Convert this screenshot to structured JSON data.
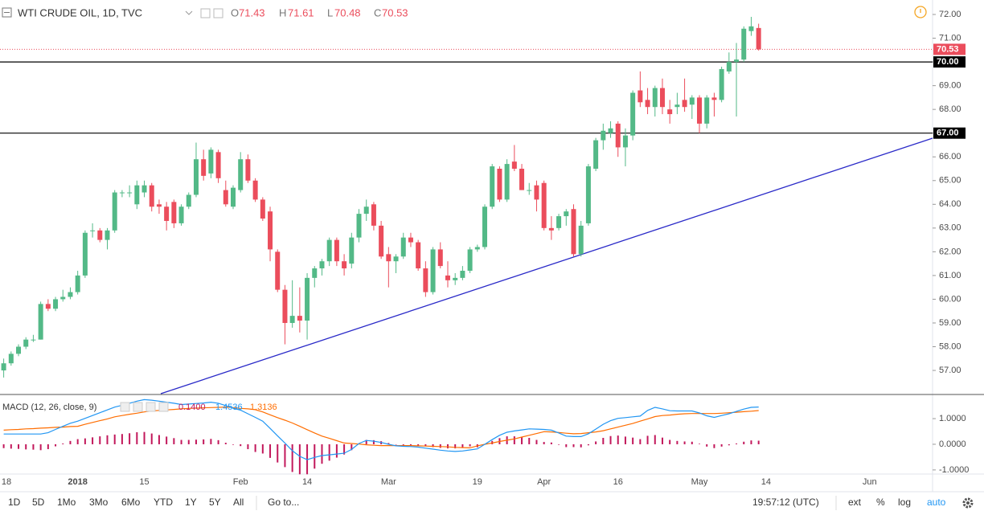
{
  "chart_data": {
    "type": "candlestick",
    "title": "WTI CRUDE OIL, 1D, TVC",
    "readout": [
      {
        "key": "O",
        "value": 71.43
      },
      {
        "key": "H",
        "value": 71.61
      },
      {
        "key": "L",
        "value": 70.48
      },
      {
        "key": "C",
        "value": 70.53
      }
    ],
    "up_color": "#53b987",
    "down_color": "#eb4d5c",
    "categories": [
      "18",
      null,
      null,
      null,
      null,
      null,
      null,
      null,
      null,
      null,
      "2018",
      null,
      null,
      null,
      null,
      null,
      null,
      null,
      null,
      "15",
      null,
      null,
      null,
      null,
      null,
      null,
      null,
      null,
      null,
      null,
      null,
      null,
      "Feb",
      null,
      null,
      null,
      null,
      null,
      null,
      null,
      null,
      "14",
      null,
      null,
      null,
      null,
      null,
      null,
      null,
      null,
      null,
      null,
      "Mar",
      null,
      null,
      null,
      null,
      null,
      null,
      null,
      null,
      null,
      null,
      null,
      "19",
      null,
      null,
      null,
      null,
      null,
      null,
      null,
      null,
      "Apr",
      null,
      null,
      null,
      null,
      null,
      null,
      null,
      null,
      null,
      "16",
      null,
      null,
      null,
      null,
      null,
      null,
      null,
      null,
      null,
      null,
      "May",
      null,
      null,
      null,
      null,
      null,
      null,
      null,
      null,
      "14",
      null,
      null,
      null,
      null,
      null,
      null,
      null,
      null,
      null,
      null,
      null,
      null,
      null,
      "Jun",
      null,
      null,
      null,
      null,
      null,
      null,
      null,
      null
    ],
    "open": [
      57.0,
      57.3,
      57.7,
      58.0,
      58.3,
      58.3,
      59.8,
      59.6,
      60.0,
      60.1,
      60.3,
      61.0,
      62.9,
      62.9,
      62.5,
      62.9,
      64.5,
      64.5,
      64.0,
      64.5,
      64.8,
      64.0,
      63.9,
      64.1,
      63.2,
      63.9,
      64.4,
      65.9,
      65.3,
      66.2,
      64.6,
      63.9,
      64.6,
      65.9,
      65.0,
      64.2,
      63.7,
      62.0,
      60.4,
      59.0,
      59.3,
      59.1,
      60.9,
      61.3,
      61.6,
      62.5,
      61.6,
      61.5,
      62.6,
      63.6,
      64.0,
      63.1,
      61.9,
      61.6,
      61.8,
      62.6,
      62.4,
      61.3,
      60.3,
      62.1,
      61.0,
      60.8,
      60.9,
      61.2,
      62.1,
      62.2,
      63.9,
      65.5,
      64.2,
      65.8,
      65.5,
      64.6,
      64.8,
      64.9,
      63.0,
      63.0,
      63.5,
      63.8,
      61.9,
      63.2,
      65.5,
      66.7,
      67.0,
      67.4,
      66.4,
      66.9,
      68.8,
      68.4,
      68.1,
      68.9,
      68.0,
      68.1,
      68.4,
      68.2,
      68.5,
      67.4,
      68.5,
      68.4,
      69.6,
      70.0,
      70.1,
      71.3,
      71.43,
      null,
      null,
      null,
      null,
      null,
      null,
      null,
      null,
      null,
      null,
      null,
      null,
      null,
      null,
      null,
      null,
      null,
      null,
      null,
      null,
      null,
      null,
      null
    ],
    "high": [
      57.5,
      57.8,
      58.1,
      58.4,
      58.5,
      59.9,
      60.0,
      60.1,
      60.4,
      60.5,
      61.2,
      62.9,
      63.2,
      63.0,
      63.0,
      64.6,
      64.6,
      64.8,
      65.0,
      65.0,
      64.9,
      64.2,
      64.1,
      64.2,
      64.0,
      64.5,
      66.6,
      66.3,
      66.4,
      66.3,
      65.0,
      64.8,
      66.2,
      66.1,
      65.1,
      64.3,
      63.9,
      62.1,
      60.6,
      60.8,
      60.5,
      61.1,
      61.4,
      61.7,
      62.6,
      62.6,
      61.9,
      62.8,
      63.8,
      64.2,
      64.1,
      63.3,
      62.2,
      61.9,
      62.8,
      62.8,
      62.5,
      61.6,
      62.2,
      62.4,
      61.6,
      61.1,
      61.4,
      62.2,
      62.3,
      64.0,
      65.7,
      65.6,
      65.9,
      66.5,
      65.7,
      64.9,
      65.0,
      65.0,
      63.5,
      63.6,
      63.8,
      64.0,
      63.3,
      65.7,
      66.8,
      67.4,
      67.5,
      67.5,
      67.2,
      68.8,
      69.6,
      68.9,
      69.0,
      69.3,
      68.4,
      68.7,
      69.3,
      68.6,
      68.6,
      68.6,
      68.7,
      69.8,
      70.4,
      70.8,
      71.5,
      71.9,
      71.61,
      null,
      null,
      null,
      null,
      null,
      null,
      null,
      null,
      null,
      null,
      null,
      null,
      null,
      null,
      null,
      null,
      null,
      null,
      null,
      null,
      null,
      null,
      null
    ],
    "low": [
      56.7,
      57.2,
      57.6,
      57.9,
      58.2,
      58.3,
      59.5,
      59.5,
      59.9,
      60.0,
      60.2,
      60.9,
      62.6,
      62.4,
      62.1,
      62.8,
      64.3,
      64.3,
      63.8,
      64.3,
      63.7,
      63.6,
      62.9,
      63.0,
      63.1,
      63.8,
      64.3,
      65.0,
      65.1,
      64.9,
      63.9,
      63.8,
      64.5,
      64.9,
      64.1,
      63.3,
      61.6,
      60.3,
      58.1,
      58.8,
      58.6,
      58.3,
      60.5,
      61.0,
      61.4,
      61.4,
      61.0,
      61.3,
      62.4,
      63.3,
      62.9,
      61.7,
      60.5,
      61.1,
      61.7,
      62.2,
      61.2,
      60.1,
      60.2,
      61.3,
      60.5,
      60.6,
      60.8,
      61.1,
      62.0,
      62.1,
      63.8,
      64.1,
      64.1,
      65.4,
      64.6,
      64.4,
      63.7,
      62.9,
      62.5,
      62.9,
      63.1,
      61.8,
      61.8,
      63.1,
      65.4,
      66.3,
      66.8,
      66.0,
      65.6,
      66.7,
      68.1,
      67.8,
      67.7,
      67.8,
      67.4,
      67.8,
      67.9,
      67.6,
      67.0,
      67.2,
      67.7,
      68.3,
      69.5,
      67.7,
      70.0,
      71.1,
      70.48,
      null,
      null,
      null,
      null,
      null,
      null,
      null,
      null,
      null,
      null,
      null,
      null,
      null,
      null,
      null,
      null,
      null,
      null,
      null,
      null,
      null,
      null,
      null
    ],
    "close": [
      57.3,
      57.7,
      58.0,
      58.3,
      58.3,
      59.8,
      59.6,
      60.0,
      60.1,
      60.3,
      61.0,
      62.8,
      62.9,
      62.5,
      62.9,
      64.5,
      64.5,
      64.5,
      64.8,
      64.8,
      63.9,
      63.9,
      63.3,
      63.2,
      63.9,
      64.4,
      65.9,
      65.2,
      66.3,
      65.1,
      64.0,
      64.7,
      65.9,
      65.0,
      64.2,
      63.4,
      62.1,
      60.4,
      59.0,
      59.3,
      59.1,
      60.9,
      61.3,
      61.6,
      62.5,
      61.6,
      61.3,
      62.6,
      63.6,
      63.9,
      63.1,
      61.8,
      61.6,
      61.8,
      62.6,
      62.4,
      61.3,
      60.3,
      62.1,
      61.4,
      60.8,
      60.9,
      61.2,
      62.1,
      62.2,
      63.9,
      65.6,
      64.2,
      65.7,
      65.5,
      64.6,
      64.6,
      64.2,
      63.0,
      62.9,
      63.5,
      63.7,
      61.9,
      63.1,
      65.6,
      66.7,
      67.1,
      67.2,
      66.4,
      66.9,
      68.7,
      68.3,
      68.1,
      68.9,
      68.1,
      67.8,
      68.2,
      68.1,
      68.5,
      67.4,
      68.5,
      68.4,
      69.7,
      70.0,
      70.1,
      71.4,
      71.5,
      70.53,
      null,
      null,
      null,
      null,
      null,
      null,
      null,
      null,
      null,
      null,
      null,
      null,
      null,
      null,
      null,
      null,
      null,
      null,
      null,
      null,
      null,
      null,
      null
    ],
    "ylim": [
      56.02,
      72.61
    ],
    "yticks": [
      {
        "value": 57,
        "label": "57.00"
      },
      {
        "value": 58,
        "label": "58.00"
      },
      {
        "value": 59,
        "label": "59.00"
      },
      {
        "value": 60,
        "label": "60.00"
      },
      {
        "value": 61,
        "label": "61.00"
      },
      {
        "value": 62,
        "label": "62.00"
      },
      {
        "value": 63,
        "label": "63.00"
      },
      {
        "value": 64,
        "label": "64.00"
      },
      {
        "value": 65,
        "label": "65.00"
      },
      {
        "value": 66,
        "label": "66.00"
      },
      {
        "value": 67,
        "label": "67.00"
      },
      {
        "value": 68,
        "label": "68.00"
      },
      {
        "value": 69,
        "label": "69.00"
      },
      {
        "value": 70,
        "label": "70.00"
      },
      {
        "value": 71,
        "label": "71.00"
      },
      {
        "value": 72,
        "label": "72.00"
      }
    ],
    "levels": [
      {
        "value": 70,
        "label": "70.00"
      },
      {
        "value": 67,
        "label": "67.00"
      }
    ],
    "level_color": "#000000",
    "last_price": {
      "value": 70.53,
      "label": "70.53"
    },
    "trend_color": "#2a2ac8",
    "macd": {
      "title": "MACD (12, 26, close, 9)",
      "ylim": [
        -1.16,
        1.91
      ],
      "yticks": [
        {
          "value": 1,
          "label": "1.0000"
        },
        {
          "value": 0,
          "label": "0.0000"
        },
        {
          "value": -1,
          "label": "-1.0000"
        }
      ],
      "readout": [
        {
          "value": 0.14,
          "label": "0.1400"
        },
        {
          "value": 1.4536,
          "label": "1.4536"
        },
        {
          "value": 1.3136,
          "label": "1.3136"
        }
      ],
      "histogram": {
        "color": "#c2185b",
        "values": [
          -0.15,
          -0.17,
          -0.18,
          -0.2,
          -0.21,
          -0.23,
          -0.19,
          -0.08,
          0.03,
          0.13,
          0.2,
          0.23,
          0.27,
          0.31,
          0.35,
          0.38,
          0.4,
          0.43,
          0.47,
          0.48,
          0.42,
          0.36,
          0.3,
          0.24,
          0.17,
          0.17,
          0.18,
          0.19,
          0.21,
          0.16,
          0.06,
          -0.02,
          -0.07,
          -0.19,
          -0.3,
          -0.36,
          -0.53,
          -0.71,
          -0.89,
          -1.08,
          -1.17,
          -1.17,
          -0.95,
          -0.76,
          -0.64,
          -0.52,
          -0.4,
          -0.23,
          0.02,
          0.17,
          0.16,
          0.12,
          0.05,
          -0.01,
          -0.03,
          -0.04,
          -0.05,
          -0.08,
          -0.11,
          -0.14,
          -0.16,
          -0.16,
          -0.13,
          -0.08,
          -0.12,
          0,
          0.13,
          0.24,
          0.31,
          0.31,
          0.28,
          0.25,
          0.17,
          0.09,
          0.07,
          -0.02,
          -0.11,
          -0.11,
          -0.12,
          -0.04,
          0.11,
          0.25,
          0.32,
          0.34,
          0.3,
          0.26,
          0.2,
          0.33,
          0.36,
          0.26,
          0.17,
          0.13,
          0.11,
          0.1,
          0.02,
          -0.09,
          -0.15,
          -0.09,
          -0.04,
          0.03,
          0.1,
          0.15,
          0.14,
          null,
          null,
          null,
          null,
          null,
          null,
          null,
          null,
          null,
          null,
          null,
          null,
          null,
          null,
          null,
          null,
          null,
          null,
          null,
          null,
          null,
          null,
          null
        ]
      },
      "macd_line": {
        "color": "#2196f3",
        "values": [
          0.4,
          0.4,
          0.4,
          0.4,
          0.4,
          0.4,
          0.45,
          0.58,
          0.7,
          0.82,
          0.9,
          1.01,
          1.12,
          1.23,
          1.34,
          1.45,
          1.52,
          1.6,
          1.68,
          1.74,
          1.72,
          1.68,
          1.64,
          1.6,
          1.55,
          1.57,
          1.59,
          1.61,
          1.64,
          1.6,
          1.51,
          1.41,
          1.33,
          1.19,
          1.05,
          0.9,
          0.62,
          0.33,
          0.05,
          -0.25,
          -0.47,
          -0.6,
          -0.51,
          -0.44,
          -0.41,
          -0.38,
          -0.35,
          -0.2,
          0.03,
          0.15,
          0.12,
          0.07,
          0,
          -0.06,
          -0.08,
          -0.09,
          -0.11,
          -0.15,
          -0.19,
          -0.23,
          -0.26,
          -0.28,
          -0.26,
          -0.22,
          -0.18,
          0,
          0.18,
          0.35,
          0.47,
          0.52,
          0.56,
          0.6,
          0.59,
          0.58,
          0.55,
          0.44,
          0.32,
          0.3,
          0.3,
          0.41,
          0.59,
          0.78,
          0.92,
          1.01,
          1.04,
          1.07,
          1.1,
          1.32,
          1.44,
          1.38,
          1.31,
          1.3,
          1.3,
          1.3,
          1.22,
          1.11,
          1.05,
          1.12,
          1.19,
          1.28,
          1.37,
          1.44,
          1.4536,
          null,
          null,
          null,
          null,
          null,
          null,
          null,
          null,
          null,
          null,
          null,
          null,
          null,
          null,
          null,
          null,
          null,
          null,
          null,
          null,
          null,
          null,
          null
        ]
      },
      "signal_line": {
        "color": "#ff6d00",
        "values": [
          0.55,
          0.57,
          0.58,
          0.6,
          0.61,
          0.63,
          0.64,
          0.66,
          0.67,
          0.69,
          0.7,
          0.78,
          0.85,
          0.92,
          0.99,
          1.07,
          1.12,
          1.17,
          1.21,
          1.26,
          1.3,
          1.32,
          1.34,
          1.36,
          1.38,
          1.4,
          1.41,
          1.42,
          1.43,
          1.44,
          1.45,
          1.43,
          1.4,
          1.38,
          1.35,
          1.26,
          1.15,
          1.04,
          0.94,
          0.83,
          0.7,
          0.57,
          0.44,
          0.32,
          0.23,
          0.14,
          0.05,
          0.03,
          0.01,
          -0.02,
          -0.04,
          -0.05,
          -0.05,
          -0.05,
          -0.05,
          -0.05,
          -0.06,
          -0.07,
          -0.08,
          -0.09,
          -0.1,
          -0.12,
          -0.13,
          -0.14,
          -0.06,
          0,
          0.05,
          0.11,
          0.16,
          0.21,
          0.28,
          0.35,
          0.42,
          0.49,
          0.48,
          0.46,
          0.43,
          0.41,
          0.42,
          0.45,
          0.48,
          0.53,
          0.6,
          0.67,
          0.74,
          0.81,
          0.9,
          0.99,
          1.08,
          1.12,
          1.14,
          1.17,
          1.19,
          1.2,
          1.2,
          1.2,
          1.2,
          1.21,
          1.23,
          1.25,
          1.27,
          1.29,
          1.3136,
          null,
          null,
          null,
          null,
          null,
          null,
          null,
          null,
          null,
          null,
          null,
          null,
          null,
          null,
          null,
          null,
          null,
          null,
          null,
          null,
          null,
          null,
          null
        ]
      }
    },
    "toolbar": {
      "ranges": [
        "1D",
        "5D",
        "1Mo",
        "3Mo",
        "6Mo",
        "YTD",
        "1Y",
        "5Y",
        "All"
      ],
      "goto": "Go to...",
      "time": "19:57:12 (UTC)",
      "options": [
        "ext",
        "%",
        "log",
        "auto"
      ]
    }
  }
}
